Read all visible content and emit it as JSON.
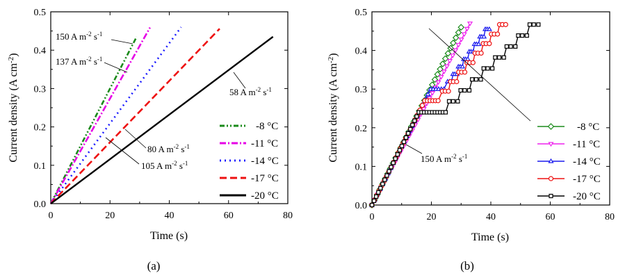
{
  "chart_data": [
    {
      "type": "line",
      "panel_label": "(a)",
      "xlabel": "Time (s)",
      "ylabel": "Current density (A cm",
      "ylabel_exp": "-2",
      "ylabel_end": ")",
      "xlim": [
        0,
        80
      ],
      "ylim": [
        0,
        0.5
      ],
      "xticks": [
        0,
        20,
        40,
        60,
        80
      ],
      "xtick_labels": [
        "0",
        "20",
        "40",
        "60",
        "80"
      ],
      "yticks": [
        0,
        0.1,
        0.2,
        0.3,
        0.4,
        0.5
      ],
      "ytick_labels": [
        "0.0",
        "0.1",
        "0.2",
        "0.3",
        "0.4",
        "0.5"
      ],
      "legend_position": "bottom-right",
      "series": [
        {
          "name": "-8 °C",
          "color": "#1a8a1a",
          "dash": "dash-dot-dot",
          "x": [
            0,
            29
          ],
          "y": [
            0,
            0.435
          ]
        },
        {
          "name": "-11 °C",
          "color": "#e600e6",
          "dash": "dash-dot",
          "x": [
            0,
            33.5
          ],
          "y": [
            0,
            0.459
          ]
        },
        {
          "name": "-14 °C",
          "color": "#1a1aff",
          "dash": "dot",
          "x": [
            0,
            44
          ],
          "y": [
            0,
            0.46
          ]
        },
        {
          "name": "-17 °C",
          "color": "#ee1111",
          "dash": "dash",
          "x": [
            0,
            57
          ],
          "y": [
            0,
            0.456
          ]
        },
        {
          "name": "-20 °C",
          "color": "#000000",
          "dash": "solid",
          "x": [
            0,
            75
          ],
          "y": [
            0,
            0.435
          ]
        }
      ],
      "annotations": [
        {
          "label_value": "150 A m",
          "sup1": "-2",
          "mid": " s",
          "sup2": "-1",
          "points_to": "-8 °C"
        },
        {
          "label_value": "137 A m",
          "sup1": "-2",
          "mid": " s",
          "sup2": "-1",
          "points_to": "-11 °C"
        },
        {
          "label_value": "58 A m",
          "sup1": "-2",
          "mid": " s",
          "sup2": "-1",
          "points_to": "-20 °C"
        },
        {
          "label_value": "80 A m",
          "sup1": "-2",
          "mid": " s",
          "sup2": "-1",
          "points_to": "-17 °C"
        },
        {
          "label_value": "105 A m",
          "sup1": "-2",
          "mid": " s",
          "sup2": "-1",
          "points_to": "-14 °C"
        }
      ]
    },
    {
      "type": "line",
      "panel_label": "(b)",
      "xlabel": "Time (s)",
      "ylabel": "Current density (A cm",
      "ylabel_exp": "-2",
      "ylabel_end": ")",
      "xlim": [
        0,
        80
      ],
      "ylim": [
        0,
        0.5
      ],
      "xticks": [
        0,
        20,
        40,
        60,
        80
      ],
      "xtick_labels": [
        "0",
        "20",
        "40",
        "60",
        "80"
      ],
      "yticks": [
        0,
        0.1,
        0.2,
        0.3,
        0.4,
        0.5
      ],
      "ytick_labels": [
        "0.0",
        "0.1",
        "0.2",
        "0.3",
        "0.4",
        "0.5"
      ],
      "legend_position": "bottom-right",
      "series": [
        {
          "name": "-8 °C",
          "color": "#1a8a1a",
          "marker": "diamond",
          "x": [
            0,
            30
          ],
          "y": [
            0,
            0.46
          ],
          "plateau_y": null,
          "plateau_x": null
        },
        {
          "name": "-11 °C",
          "color": "#ee22ee",
          "marker": "triangle-down",
          "x": [
            0,
            33
          ],
          "y": [
            0,
            0.47
          ],
          "plateau_y": null,
          "plateau_x": null
        },
        {
          "name": "-14 °C",
          "color": "#1a1aee",
          "marker": "triangle-up",
          "x": [
            0,
            39.5
          ],
          "y": [
            0,
            0.455
          ],
          "plateau_y": 0.3,
          "plateau_x": [
            20,
            25
          ]
        },
        {
          "name": "-17 °C",
          "color": "#ee1111",
          "marker": "circle",
          "x": [
            0,
            45
          ],
          "y": [
            0,
            0.467
          ],
          "plateau_y": 0.27,
          "plateau_x": [
            18,
            23
          ]
        },
        {
          "name": "-20 °C",
          "color": "#000000",
          "marker": "square",
          "x": [
            0,
            56
          ],
          "y": [
            0,
            0.467
          ],
          "plateau_y": 0.24,
          "plateau_x": [
            16,
            25
          ]
        }
      ],
      "annotations": [
        {
          "label_value": "150 A m",
          "sup1": "-2",
          "mid": " s",
          "sup2": "-1",
          "points_to": "initial slope"
        }
      ]
    }
  ]
}
